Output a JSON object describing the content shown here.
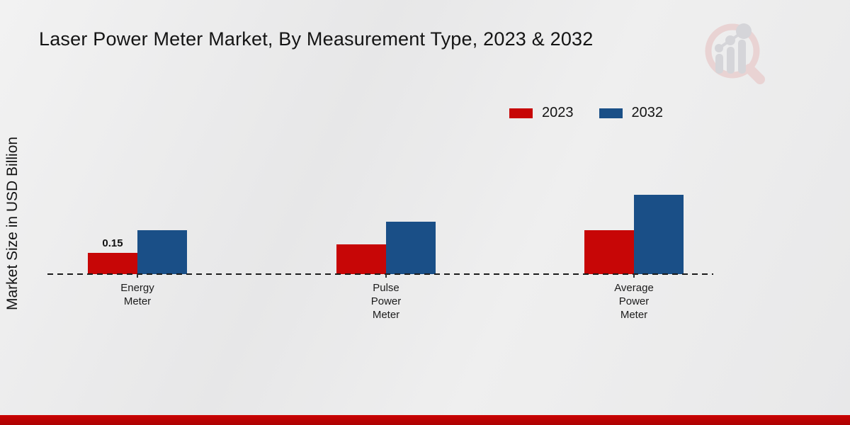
{
  "header": {
    "title": "Laser Power Meter Market, By Measurement Type, 2023 & 2032",
    "logo": "magnifier-bar-chart-watermark"
  },
  "chart_data": {
    "type": "bar",
    "title": "Laser Power Meter Market, By Measurement Type, 2023 & 2032",
    "xlabel": "",
    "ylabel": "Market Size in USD Billion",
    "categories": [
      "Energy Meter",
      "Pulse Power Meter",
      "Average Power Meter"
    ],
    "category_lines": [
      [
        "Energy",
        "Meter"
      ],
      [
        "Pulse",
        "Power",
        "Meter"
      ],
      [
        "Average",
        "Power",
        "Meter"
      ]
    ],
    "series": [
      {
        "name": "2023",
        "color": "#c70606",
        "values": [
          0.15,
          0.21,
          0.31
        ]
      },
      {
        "name": "2032",
        "color": "#1a4f87",
        "values": [
          0.31,
          0.37,
          0.56
        ]
      }
    ],
    "bar_labels": [
      [
        "0.15",
        "",
        ""
      ],
      [
        "",
        "",
        ""
      ]
    ],
    "ylim": [
      0,
      0.6
    ],
    "grid": false,
    "y_axis_visible": false,
    "baseline_style": "dashed-black",
    "legend_position": "top-right"
  },
  "footer": {
    "accent_band_color": "#bf0303"
  }
}
